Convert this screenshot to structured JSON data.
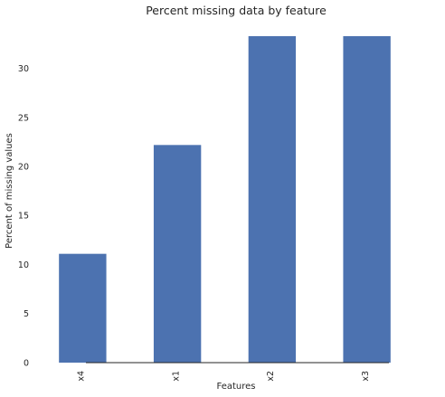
{
  "chart_data": {
    "type": "bar",
    "title": "Percent missing data by feature",
    "xlabel": "Features",
    "ylabel": "Percent of missing values",
    "categories": [
      "x4",
      "x1",
      "x2",
      "x3"
    ],
    "values": [
      11.1,
      22.2,
      33.3,
      33.3
    ],
    "ylim": [
      0,
      33.3
    ],
    "yticks": [
      0,
      5,
      10,
      15,
      20,
      25,
      30
    ],
    "grid": false,
    "legend": "none",
    "bar_color": "#4c72b0",
    "background": "#eaeaf2"
  }
}
